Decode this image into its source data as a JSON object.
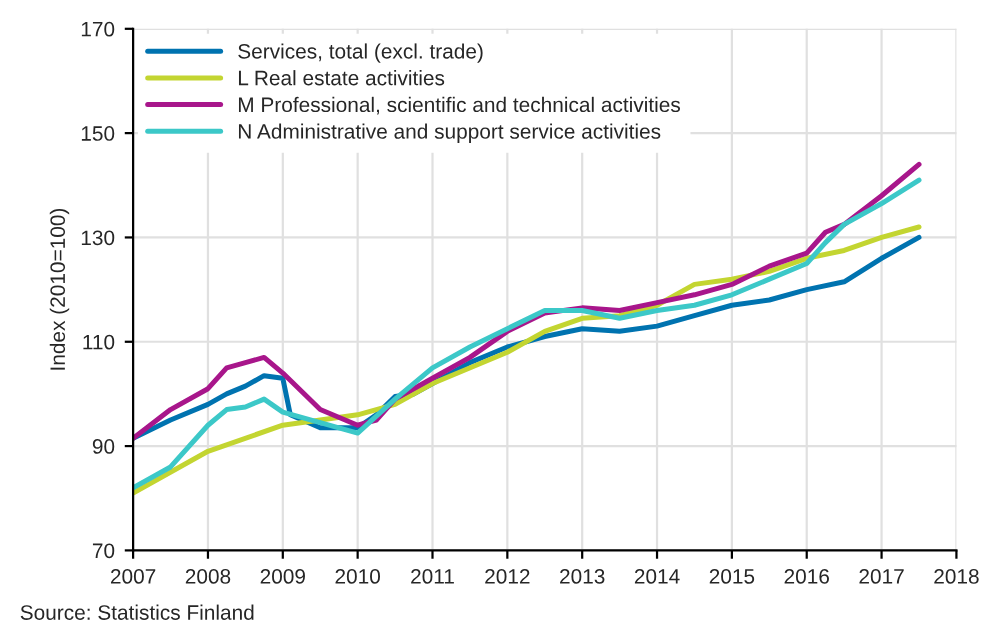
{
  "chart_data": {
    "type": "line",
    "ylabel": "Index (2010=100)",
    "annotations": [
      "Source: Statistics Finland"
    ],
    "xlim": [
      2007,
      2018
    ],
    "xticks": [
      2007,
      2008,
      2009,
      2010,
      2011,
      2012,
      2013,
      2014,
      2015,
      2016,
      2017,
      2018
    ],
    "ylim": [
      70,
      170
    ],
    "yticks": [
      70,
      90,
      110,
      130,
      150,
      170
    ],
    "grid": true,
    "legend": "top left",
    "series": [
      {
        "name": "Services, total (excl. trade)",
        "color": "#0073b0",
        "x": [
          2007,
          2007.5,
          2008,
          2008.25,
          2008.5,
          2008.75,
          2009,
          2009.1,
          2009.5,
          2010,
          2010.25,
          2010.5,
          2010.75,
          2011,
          2011.5,
          2012,
          2012.5,
          2013,
          2013.5,
          2014,
          2014.5,
          2015,
          2015.5,
          2016,
          2016.5,
          2017,
          2017.5
        ],
        "values": [
          91.5,
          95,
          98,
          100,
          101.5,
          103.5,
          103,
          96,
          93.5,
          93.5,
          96,
          99.5,
          100,
          102,
          106,
          109,
          111,
          112.5,
          112,
          113,
          115,
          117,
          118,
          120,
          121.5,
          126,
          130
        ]
      },
      {
        "name": "L Real estate activities",
        "color": "#c3d531",
        "x": [
          2007,
          2008,
          2009,
          2010,
          2010.5,
          2011,
          2012,
          2012.5,
          2013,
          2013.5,
          2014,
          2014.5,
          2015,
          2015.5,
          2016,
          2016.5,
          2017,
          2017.5
        ],
        "values": [
          81,
          89,
          94,
          96,
          98,
          102,
          108,
          112,
          114.5,
          115,
          117,
          121,
          122,
          123.5,
          126,
          127.5,
          130,
          132
        ]
      },
      {
        "name": "M Professional, scientific and technical activities",
        "color": "#a8168b",
        "x": [
          2007,
          2007.5,
          2008,
          2008.25,
          2008.5,
          2008.75,
          2009,
          2009.5,
          2010,
          2010.25,
          2010.5,
          2011,
          2011.5,
          2012,
          2012.5,
          2013,
          2013.5,
          2014,
          2014.5,
          2015,
          2015.5,
          2016,
          2016.25,
          2016.5,
          2017,
          2017.5
        ],
        "values": [
          91.5,
          97,
          101,
          105,
          106,
          107,
          104,
          97,
          94,
          95,
          99,
          103,
          107,
          112,
          115.5,
          116.5,
          116,
          117.5,
          119,
          121,
          124.5,
          127,
          131,
          132.5,
          138,
          144
        ]
      },
      {
        "name": "N Administrative and support service activities",
        "color": "#3cc8c8",
        "x": [
          2007,
          2007.5,
          2008,
          2008.25,
          2008.5,
          2008.75,
          2009,
          2009.5,
          2010,
          2010.5,
          2011,
          2011.5,
          2012,
          2012.5,
          2013,
          2013.5,
          2014,
          2014.5,
          2015,
          2015.5,
          2016,
          2016.25,
          2016.5,
          2017,
          2017.5
        ],
        "values": [
          82,
          86,
          94,
          97,
          97.5,
          99,
          96.5,
          94.5,
          92.5,
          99,
          105,
          109,
          112.5,
          116,
          116,
          114.5,
          116,
          117,
          119,
          122,
          125,
          129,
          132.5,
          136.5,
          141
        ]
      }
    ]
  }
}
